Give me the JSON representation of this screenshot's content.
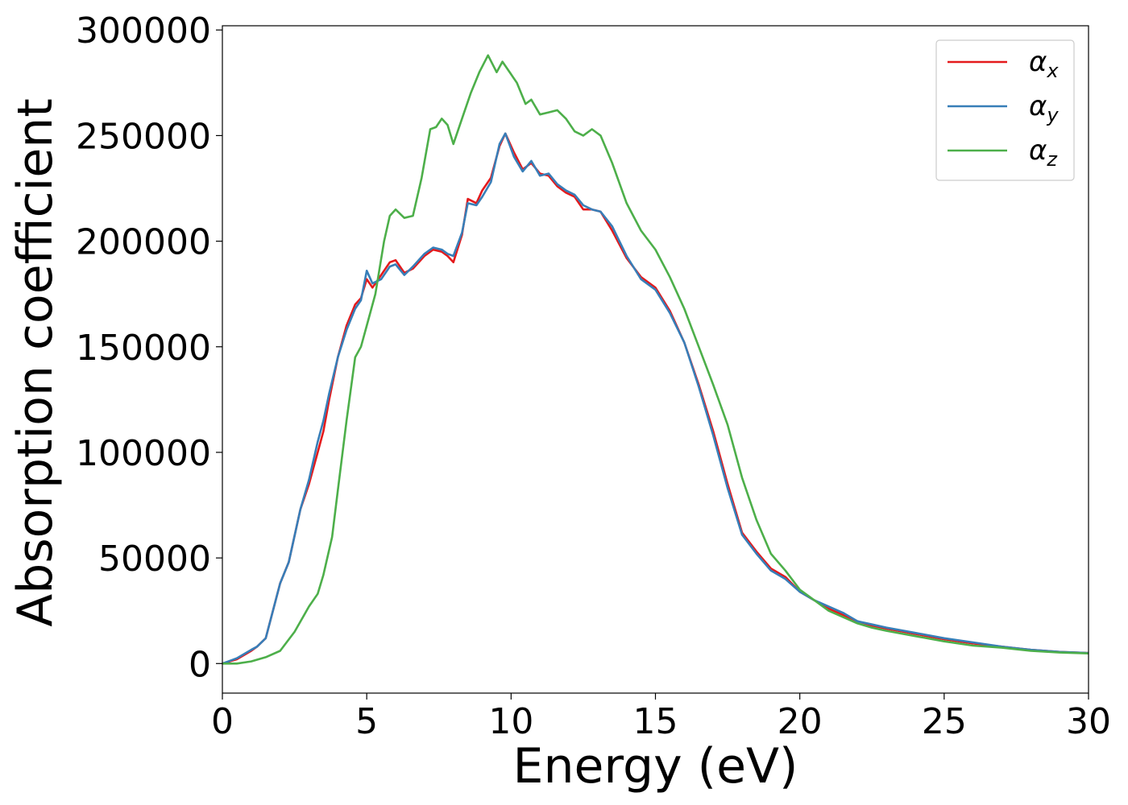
{
  "chart_data": {
    "type": "line",
    "xlabel": "Energy (eV)",
    "ylabel": "Absorption coefficient",
    "xlim": [
      0,
      30
    ],
    "ylim": [
      -14000,
      302000
    ],
    "xticks": [
      0,
      5,
      10,
      15,
      20,
      25,
      30
    ],
    "yticks": [
      0,
      50000,
      100000,
      150000,
      200000,
      250000,
      300000
    ],
    "grid": false,
    "legend_position": "top-right",
    "series": [
      {
        "name": "αx",
        "label_base": "α",
        "label_sub": "x",
        "color": "#e41a1c",
        "x": [
          0,
          0.5,
          1.0,
          1.2,
          1.5,
          2.0,
          2.3,
          2.7,
          3.0,
          3.3,
          3.5,
          3.7,
          4.0,
          4.3,
          4.6,
          4.8,
          5.0,
          5.2,
          5.5,
          5.8,
          6.0,
          6.3,
          6.6,
          7.0,
          7.3,
          7.6,
          7.8,
          8.0,
          8.3,
          8.5,
          8.8,
          9.0,
          9.3,
          9.6,
          9.8,
          10.1,
          10.4,
          10.7,
          11.0,
          11.3,
          11.6,
          11.9,
          12.2,
          12.5,
          12.8,
          13.1,
          13.5,
          14.0,
          14.5,
          15.0,
          15.5,
          16.0,
          16.5,
          17.0,
          17.5,
          18.0,
          18.5,
          19.0,
          19.5,
          20.0,
          20.5,
          21.0,
          21.5,
          22.0,
          22.5,
          23.0,
          24.0,
          25.0,
          26.0,
          27.0,
          28.0,
          29.0,
          30.0
        ],
        "y": [
          0,
          2000,
          6000,
          8000,
          12000,
          38000,
          48000,
          73000,
          85000,
          100000,
          110000,
          125000,
          145000,
          160000,
          170000,
          173000,
          182000,
          178000,
          184000,
          190000,
          191000,
          185000,
          187000,
          193000,
          196000,
          195000,
          193000,
          190000,
          203000,
          220000,
          218000,
          224000,
          230000,
          245000,
          251000,
          242000,
          234000,
          237000,
          232000,
          231000,
          226000,
          223000,
          221000,
          215000,
          215000,
          214000,
          205000,
          192000,
          183000,
          178000,
          167000,
          152000,
          132000,
          110000,
          85000,
          62000,
          53000,
          45000,
          41000,
          34000,
          30000,
          26000,
          23000,
          20000,
          18000,
          16500,
          14000,
          11500,
          9500,
          8000,
          6500,
          5500,
          5000
        ]
      },
      {
        "name": "αy",
        "label_base": "α",
        "label_sub": "y",
        "color": "#377eb8",
        "x": [
          0,
          0.5,
          1.0,
          1.2,
          1.5,
          2.0,
          2.3,
          2.7,
          3.0,
          3.3,
          3.5,
          3.7,
          4.0,
          4.3,
          4.6,
          4.8,
          5.0,
          5.2,
          5.5,
          5.8,
          6.0,
          6.3,
          6.6,
          7.0,
          7.3,
          7.6,
          7.8,
          8.0,
          8.3,
          8.5,
          8.8,
          9.0,
          9.3,
          9.6,
          9.8,
          10.1,
          10.4,
          10.7,
          11.0,
          11.3,
          11.6,
          11.9,
          12.2,
          12.5,
          12.8,
          13.1,
          13.5,
          14.0,
          14.5,
          15.0,
          15.5,
          16.0,
          16.5,
          17.0,
          17.5,
          18.0,
          18.5,
          19.0,
          19.5,
          20.0,
          20.5,
          21.0,
          21.5,
          22.0,
          22.5,
          23.0,
          24.0,
          25.0,
          26.0,
          27.0,
          28.0,
          29.0,
          30.0
        ],
        "y": [
          0,
          2500,
          6500,
          8000,
          12000,
          38000,
          48000,
          73000,
          87000,
          105000,
          115000,
          128000,
          145000,
          158000,
          168000,
          172000,
          186000,
          180000,
          182000,
          188000,
          189000,
          184000,
          188000,
          194000,
          197000,
          196000,
          194000,
          193000,
          204000,
          218000,
          217000,
          221000,
          228000,
          246000,
          251000,
          240000,
          233000,
          238000,
          231000,
          232000,
          227000,
          224000,
          222000,
          217000,
          215000,
          214000,
          207000,
          193000,
          182000,
          177000,
          166000,
          152000,
          131000,
          108000,
          83000,
          61000,
          52000,
          44000,
          40000,
          34000,
          30000,
          27000,
          24000,
          20000,
          18500,
          17000,
          14500,
          12000,
          10000,
          8000,
          6500,
          5500,
          5000
        ]
      },
      {
        "name": "αz",
        "label_base": "α",
        "label_sub": "z",
        "color": "#4daf4a",
        "x": [
          0,
          0.5,
          1.0,
          1.5,
          2.0,
          2.5,
          3.0,
          3.3,
          3.5,
          3.8,
          4.0,
          4.3,
          4.6,
          4.8,
          5.0,
          5.3,
          5.6,
          5.8,
          6.0,
          6.3,
          6.6,
          6.9,
          7.2,
          7.4,
          7.6,
          7.8,
          8.0,
          8.3,
          8.6,
          8.9,
          9.2,
          9.5,
          9.7,
          9.9,
          10.2,
          10.5,
          10.7,
          11.0,
          11.3,
          11.6,
          11.9,
          12.2,
          12.5,
          12.8,
          13.1,
          13.5,
          14.0,
          14.5,
          15.0,
          15.5,
          16.0,
          16.5,
          17.0,
          17.5,
          18.0,
          18.5,
          19.0,
          19.5,
          20.0,
          20.5,
          21.0,
          21.5,
          22.0,
          22.5,
          23.0,
          24.0,
          25.0,
          26.0,
          27.0,
          28.0,
          29.0,
          30.0
        ],
        "y": [
          0,
          0,
          1000,
          3000,
          6000,
          15000,
          27000,
          33000,
          42000,
          60000,
          82000,
          115000,
          145000,
          150000,
          160000,
          175000,
          200000,
          212000,
          215000,
          211000,
          212000,
          230000,
          253000,
          254000,
          258000,
          255000,
          246000,
          258000,
          270000,
          280000,
          288000,
          280000,
          285000,
          281000,
          275000,
          265000,
          267000,
          260000,
          261000,
          262000,
          258000,
          252000,
          250000,
          253000,
          250000,
          237000,
          218000,
          205000,
          196000,
          183000,
          168000,
          150000,
          132000,
          113000,
          88000,
          68000,
          52000,
          44000,
          35000,
          30000,
          25000,
          22000,
          19000,
          17000,
          15500,
          13000,
          10500,
          8500,
          7500,
          6000,
          5200,
          4800
        ]
      }
    ]
  }
}
